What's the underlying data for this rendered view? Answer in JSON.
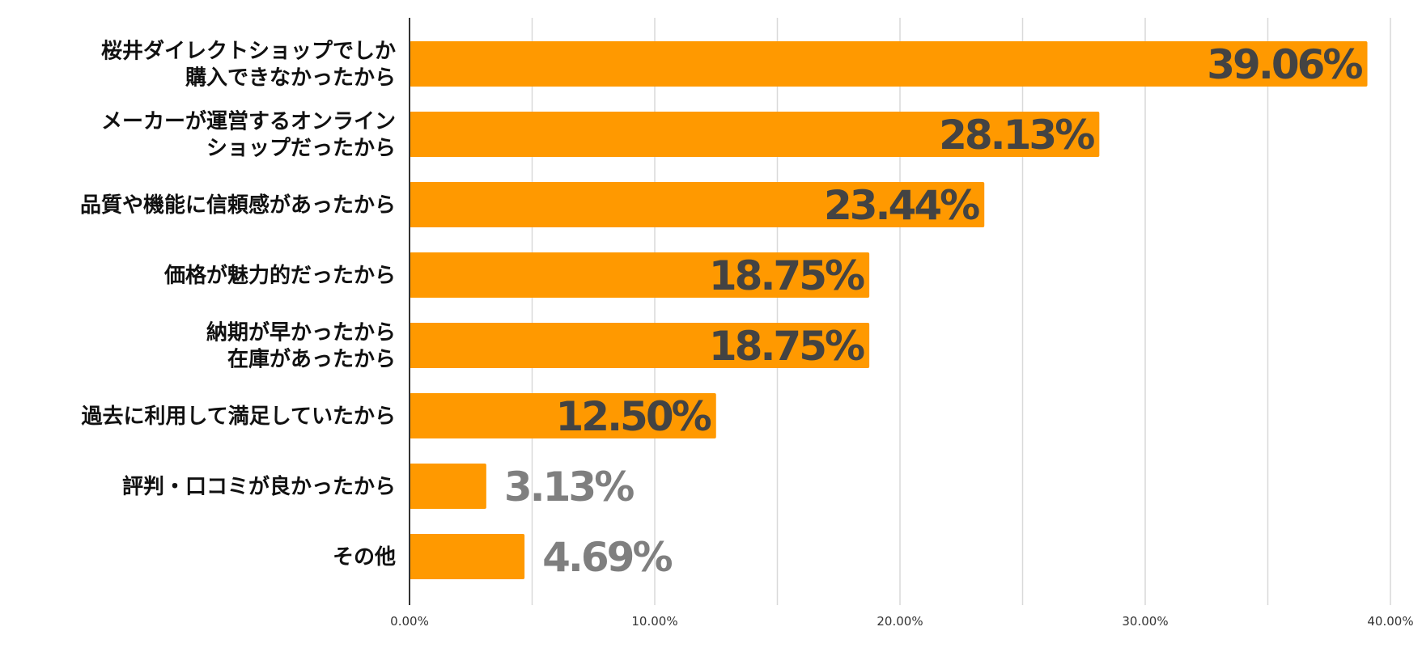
{
  "chart_data": {
    "type": "bar",
    "orientation": "horizontal",
    "categories": [
      [
        "桜井ダイレクトショップでしか",
        "購入できなかったから"
      ],
      [
        "メーカーが運営するオンライン",
        "ショップだったから"
      ],
      [
        "品質や機能に信頼感があったから"
      ],
      [
        "価格が魅力的だったから"
      ],
      [
        "納期が早かったから",
        "在庫があったから"
      ],
      [
        "過去に利用して満足していたから"
      ],
      [
        "評判・口コミが良かったから"
      ],
      [
        "その他"
      ]
    ],
    "values": [
      39.06,
      28.13,
      23.44,
      18.75,
      18.75,
      12.5,
      3.13,
      4.69
    ],
    "data_labels": [
      "39.06%",
      "28.13%",
      "23.44%",
      "18.75%",
      "18.75%",
      "12.50%",
      "3.13%",
      "4.69%"
    ],
    "xlim": [
      0,
      40
    ],
    "x_ticks": [
      0,
      10,
      20,
      30,
      40
    ],
    "x_tick_labels": [
      "0.00%",
      "10.00%",
      "20.00%",
      "30.00%",
      "40.00%"
    ],
    "grid": true,
    "legend": "none",
    "colors": {
      "bar": "#FF9900",
      "label_inside": "#434343",
      "label_outside": "#7f7f7f",
      "grid": "#d9d9d9",
      "axis": "#333333"
    }
  }
}
